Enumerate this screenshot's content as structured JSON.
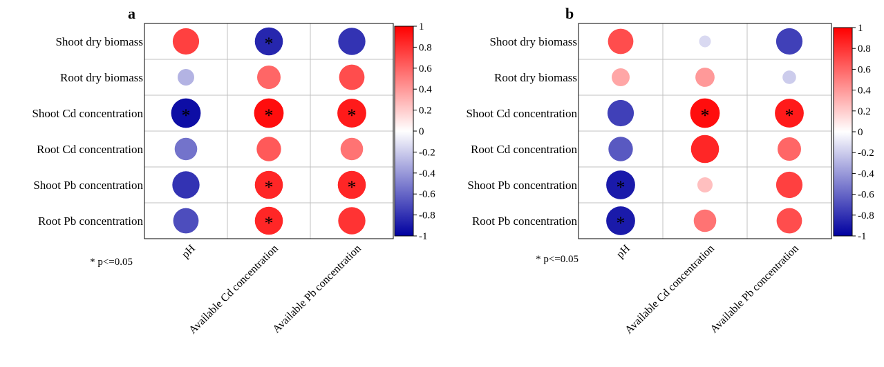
{
  "colors": {
    "negative": "#0000a0",
    "zero": "#ffffff",
    "positive": "#ff0000",
    "grid": "#c0c0c0",
    "frame": "#000000"
  },
  "chart_data": [
    {
      "type": "heatmap",
      "panel_label": "a",
      "rows": [
        "Shoot dry biomass",
        "Root dry biomass",
        "Shoot Cd concentration",
        "Root Cd concentration",
        "Shoot Pb concentration",
        "Root Pb concentration"
      ],
      "columns": [
        "pH",
        "Available Cd concentration",
        "Available Pb concentration"
      ],
      "values": [
        [
          0.75,
          -0.85,
          -0.8
        ],
        [
          -0.3,
          0.6,
          0.7
        ],
        [
          -0.95,
          0.95,
          0.9
        ],
        [
          -0.55,
          0.65,
          0.55
        ],
        [
          -0.8,
          0.85,
          0.85
        ],
        [
          -0.7,
          0.85,
          0.8
        ]
      ],
      "significant": [
        [
          false,
          true,
          false
        ],
        [
          false,
          false,
          false
        ],
        [
          true,
          true,
          true
        ],
        [
          false,
          false,
          false
        ],
        [
          false,
          true,
          true
        ],
        [
          false,
          true,
          false
        ]
      ],
      "note": "* p<=0.05",
      "colorbar_range": [
        -1,
        1
      ],
      "colorbar_ticks": [
        "1",
        "0.8",
        "0.6",
        "0.4",
        "0.2",
        "0",
        "-0.2",
        "-0.4",
        "-0.6",
        "-0.8",
        "-1"
      ]
    },
    {
      "type": "heatmap",
      "panel_label": "b",
      "rows": [
        "Shoot dry biomass",
        "Root dry biomass",
        "Shoot Cd concentration",
        "Root Cd concentration",
        "Shoot Pb concentration",
        "Root Pb concentration"
      ],
      "columns": [
        "pH",
        "Available Cd concentration",
        "Available Pb concentration"
      ],
      "values": [
        [
          0.7,
          -0.15,
          -0.75
        ],
        [
          0.35,
          0.4,
          -0.2
        ],
        [
          -0.75,
          0.95,
          0.9
        ],
        [
          -0.65,
          0.85,
          0.6
        ],
        [
          -0.9,
          0.25,
          0.75
        ],
        [
          -0.9,
          0.55,
          0.7
        ]
      ],
      "significant": [
        [
          false,
          false,
          false
        ],
        [
          false,
          false,
          false
        ],
        [
          false,
          true,
          true
        ],
        [
          false,
          false,
          false
        ],
        [
          true,
          false,
          false
        ],
        [
          true,
          false,
          false
        ]
      ],
      "note": "* p<=0.05",
      "colorbar_range": [
        -1,
        1
      ],
      "colorbar_ticks": [
        "1",
        "0.8",
        "0.6",
        "0.4",
        "0.2",
        "0",
        "-0.2",
        "-0.4",
        "-0.6",
        "-0.8",
        "-1"
      ]
    }
  ]
}
